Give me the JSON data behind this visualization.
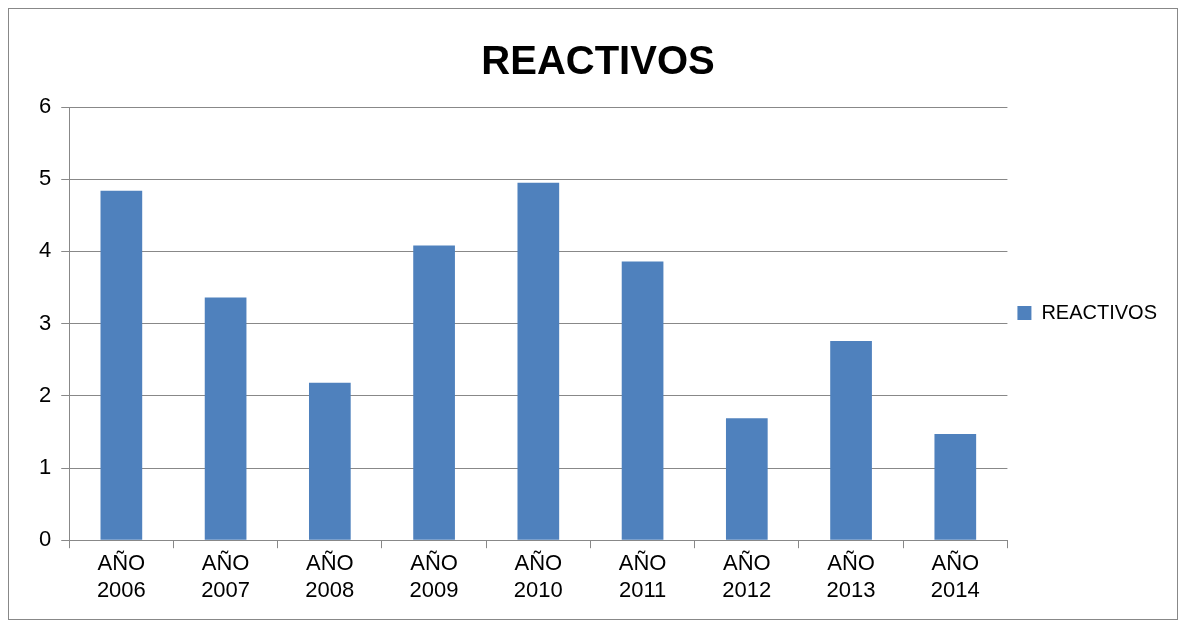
{
  "chart_data": {
    "type": "bar",
    "title": "REACTIVOS",
    "categories": [
      "AÑO 2006",
      "AÑO 2007",
      "AÑO 2008",
      "AÑO 2009",
      "AÑO 2010",
      "AÑO 2011",
      "AÑO 2012",
      "AÑO 2013",
      "AÑO 2014"
    ],
    "series": [
      {
        "name": "REACTIVOS",
        "color": "#4f81bd",
        "values": [
          4.84,
          3.36,
          2.18,
          4.08,
          4.95,
          3.86,
          1.69,
          2.76,
          1.47
        ]
      }
    ],
    "ylim": [
      0,
      6
    ],
    "yticks": [
      0,
      1,
      2,
      3,
      4,
      5,
      6
    ],
    "grid": "y",
    "legend": "right"
  }
}
